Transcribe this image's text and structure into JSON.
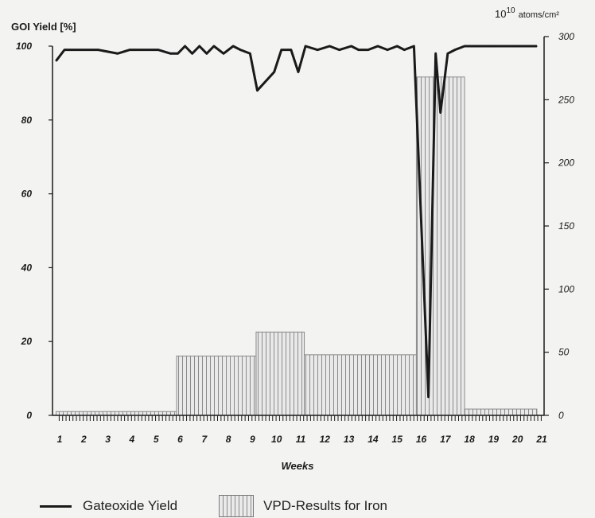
{
  "chart_data": {
    "type": "bar",
    "xlabel": "Weeks",
    "x_ticks": [
      "1",
      "2",
      "3",
      "4",
      "5",
      "6",
      "7",
      "8",
      "9",
      "10",
      "11",
      "12",
      "13",
      "14",
      "15",
      "16",
      "17",
      "18",
      "19",
      "20",
      "21"
    ],
    "y_left": {
      "label": "GOI Yield [%]",
      "ticks": [
        "0",
        "20",
        "40",
        "60",
        "80",
        "100"
      ],
      "range": [
        0,
        100
      ]
    },
    "y_right": {
      "label": "10",
      "label_sup": "10",
      "label_unit": "atoms/cm²",
      "ticks": [
        "0",
        "50",
        "100",
        "150",
        "200",
        "250",
        "300"
      ],
      "range": [
        0,
        300
      ]
    },
    "bars": {
      "name": "VPD-Results for Iron",
      "axis": "right",
      "segments": [
        {
          "from": 0.85,
          "to": 5.85,
          "value": 3
        },
        {
          "from": 5.85,
          "to": 9.15,
          "value": 47
        },
        {
          "from": 9.15,
          "to": 11.15,
          "value": 66
        },
        {
          "from": 11.15,
          "to": 15.8,
          "value": 48
        },
        {
          "from": 15.8,
          "to": 17.8,
          "value": 268
        },
        {
          "from": 17.8,
          "to": 20.8,
          "value": 5
        }
      ]
    },
    "line": {
      "name": "Gateoxide Yield",
      "axis": "left",
      "x": [
        0.85,
        1.2,
        1.6,
        2,
        2.6,
        3.4,
        3.9,
        4.5,
        5.1,
        5.6,
        5.9,
        6.2,
        6.5,
        6.8,
        7.1,
        7.4,
        7.8,
        8.2,
        8.5,
        8.9,
        9.2,
        9.9,
        10.2,
        10.6,
        10.9,
        11.2,
        11.7,
        12.2,
        12.6,
        13.1,
        13.4,
        13.8,
        14.2,
        14.6,
        15,
        15.3,
        15.7,
        16.3,
        16.6,
        16.8,
        17.1,
        17.4,
        17.8,
        18.2,
        18.8,
        19.3,
        19.6,
        20,
        20.8
      ],
      "values": [
        96,
        99,
        99,
        99,
        99,
        98,
        99,
        99,
        99,
        98,
        98,
        100,
        98,
        100,
        98,
        100,
        98,
        100,
        99,
        98,
        88,
        93,
        99,
        99,
        93,
        100,
        99,
        100,
        99,
        100,
        99,
        99,
        100,
        99,
        100,
        99,
        100,
        5,
        98,
        82,
        98,
        99,
        100,
        100,
        100,
        100,
        100,
        100,
        100
      ]
    }
  },
  "legend": {
    "line_label": "Gateoxide Yield",
    "bar_label": "VPD-Results for Iron"
  },
  "colors": {
    "line": "#1a1a1a",
    "bar_fill": "#e6e6e6",
    "bar_stripe": "#8a8a8a",
    "axis": "#1a1a1a"
  }
}
